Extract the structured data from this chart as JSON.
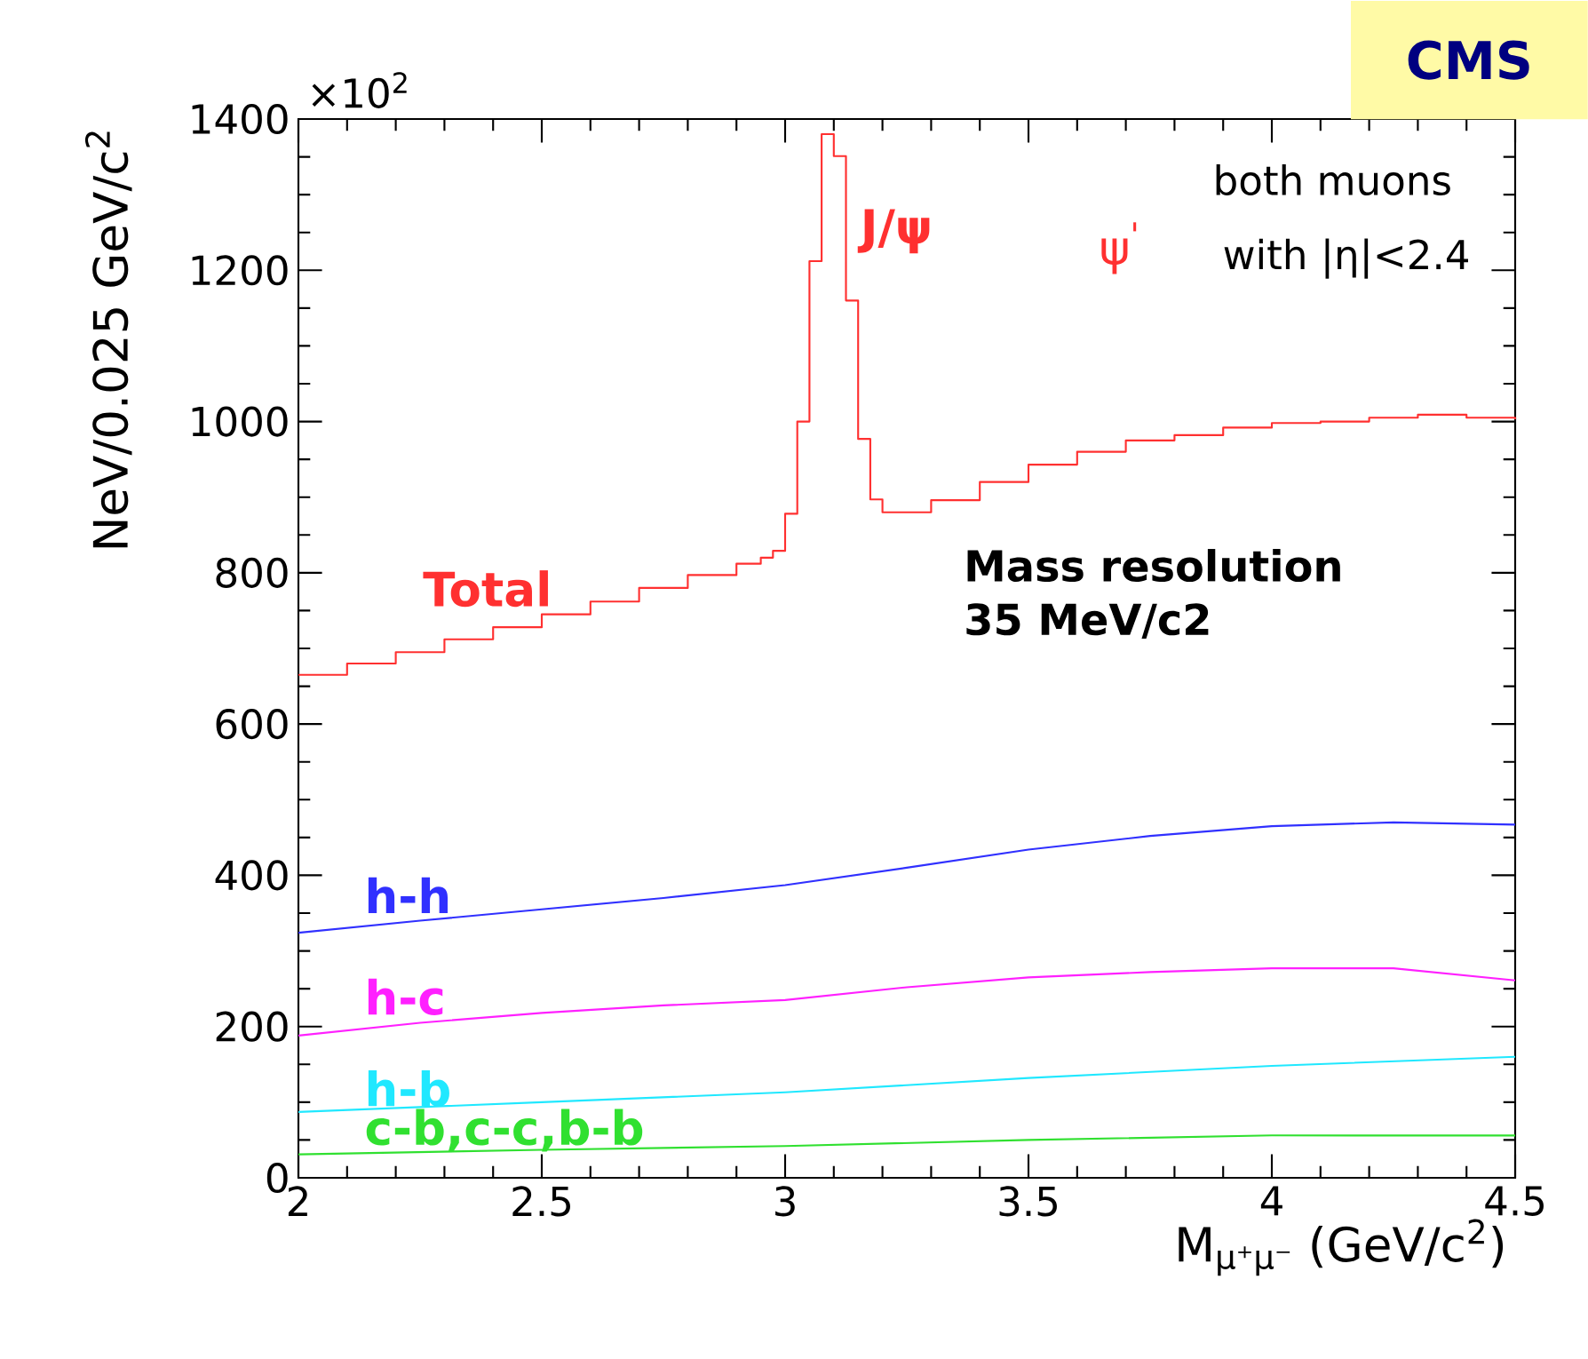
{
  "chart_data": {
    "type": "line",
    "xlabel": "M$_{μ⁺μ⁻}$ (GeV/c$^{2}$)",
    "ylabel": "NeV/0.025 GeV/c$^{2}$",
    "xlim": [
      2,
      4.5
    ],
    "ylim": [
      0,
      1400
    ],
    "xticks": [
      2,
      2.5,
      3,
      3.5,
      4,
      4.5
    ],
    "yticks": [
      0,
      200,
      400,
      600,
      800,
      1000,
      1200,
      1400
    ],
    "grid": false,
    "legend": false,
    "marker": "none",
    "line_style": "solid",
    "series": [
      {
        "name": "Total",
        "type": "step",
        "color": "#ff3030",
        "x": [
          2.0,
          2.1,
          2.2,
          2.3,
          2.4,
          2.5,
          2.6,
          2.7,
          2.8,
          2.9,
          2.95,
          2.975,
          3.0,
          3.025,
          3.05,
          3.075,
          3.1,
          3.125,
          3.15,
          3.175,
          3.2,
          3.3,
          3.4,
          3.5,
          3.6,
          3.7,
          3.8,
          3.9,
          4.0,
          4.1,
          4.2,
          4.3,
          4.4,
          4.5
        ],
        "values": [
          665,
          680,
          695,
          712,
          728,
          745,
          762,
          780,
          797,
          812,
          820,
          829,
          878,
          1000,
          1212,
          1380,
          1351,
          1160,
          977,
          897,
          880,
          896,
          920,
          943,
          960,
          975,
          982,
          992,
          998,
          1000,
          1005,
          1009,
          1005,
          1003
        ]
      },
      {
        "name": "h-h",
        "color": "#3030ff",
        "x": [
          2.0,
          2.25,
          2.5,
          2.75,
          3.0,
          3.25,
          3.5,
          3.75,
          4.0,
          4.25,
          4.5
        ],
        "values": [
          324,
          340,
          355,
          370,
          387,
          410,
          434,
          452,
          465,
          470,
          467
        ]
      },
      {
        "name": "h-c",
        "color": "#ff20ff",
        "x": [
          2.0,
          2.25,
          2.5,
          2.75,
          3.0,
          3.25,
          3.5,
          3.75,
          4.0,
          4.25,
          4.5
        ],
        "values": [
          188,
          205,
          218,
          228,
          235,
          252,
          265,
          272,
          277,
          277,
          261
        ]
      },
      {
        "name": "h-b",
        "color": "#20e8ff",
        "x": [
          2.0,
          2.5,
          3.0,
          3.5,
          4.0,
          4.5
        ],
        "values": [
          87,
          100,
          113,
          132,
          148,
          160
        ]
      },
      {
        "name": "c-b,c-c,b-b",
        "color": "#30e030",
        "x": [
          2.0,
          2.5,
          3.0,
          3.5,
          4.0,
          4.5
        ],
        "values": [
          31,
          37,
          42,
          50,
          56,
          56
        ]
      }
    ],
    "annotations": [
      "×10$^{2}$",
      "CMS",
      "both muons",
      "with |η|<2.4",
      "Mass resolution",
      "35 MeV/c2",
      "J/ψ",
      "ψ$^{'}$"
    ]
  }
}
